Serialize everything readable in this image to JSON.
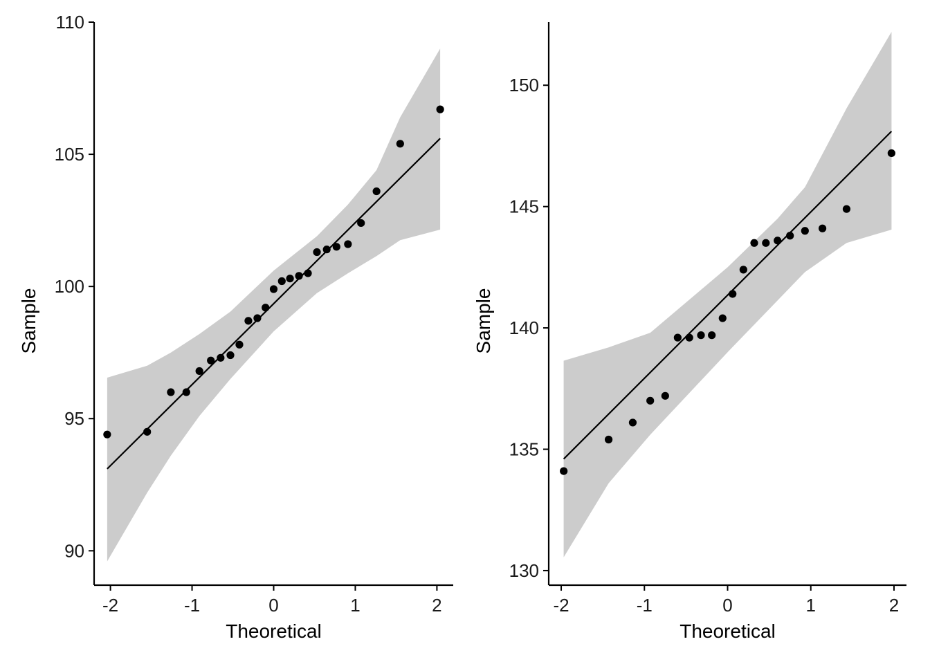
{
  "colors": {
    "band": "#cccccc",
    "line": "#000000",
    "point": "#000000",
    "axis": "#000000",
    "background": "#ffffff"
  },
  "chart_data": [
    {
      "type": "scatter",
      "title": "",
      "xlabel": "Theoretical",
      "ylabel": "Sample",
      "xlim": [
        -2.2,
        2.2
      ],
      "ylim": [
        88.7,
        110
      ],
      "x_ticks": [
        -2,
        -1,
        0,
        1,
        2
      ],
      "x_tick_labels": [
        "-2",
        "-1",
        "0",
        "1",
        "2"
      ],
      "y_ticks": [
        90,
        95,
        100,
        105,
        110
      ],
      "y_tick_labels": [
        "90",
        "95",
        "100",
        "105",
        "110"
      ],
      "grid": false,
      "points": [
        {
          "x": -2.04,
          "y": 94.4
        },
        {
          "x": -1.55,
          "y": 94.5
        },
        {
          "x": -1.26,
          "y": 96.0
        },
        {
          "x": -1.07,
          "y": 96.0
        },
        {
          "x": -0.91,
          "y": 96.8
        },
        {
          "x": -0.77,
          "y": 97.2
        },
        {
          "x": -0.65,
          "y": 97.3
        },
        {
          "x": -0.53,
          "y": 97.4
        },
        {
          "x": -0.42,
          "y": 97.8
        },
        {
          "x": -0.31,
          "y": 98.7
        },
        {
          "x": -0.2,
          "y": 98.8
        },
        {
          "x": -0.1,
          "y": 99.2
        },
        {
          "x": 0.0,
          "y": 99.9
        },
        {
          "x": 0.1,
          "y": 100.2
        },
        {
          "x": 0.2,
          "y": 100.3
        },
        {
          "x": 0.31,
          "y": 100.4
        },
        {
          "x": 0.42,
          "y": 100.5
        },
        {
          "x": 0.53,
          "y": 101.3
        },
        {
          "x": 0.65,
          "y": 101.4
        },
        {
          "x": 0.77,
          "y": 101.5
        },
        {
          "x": 0.91,
          "y": 101.6
        },
        {
          "x": 1.07,
          "y": 102.4
        },
        {
          "x": 1.26,
          "y": 103.6
        },
        {
          "x": 1.55,
          "y": 105.4
        },
        {
          "x": 2.04,
          "y": 106.7
        }
      ],
      "reference_line": [
        {
          "x": -2.04,
          "y": 93.1
        },
        {
          "x": 2.04,
          "y": 105.6
        }
      ],
      "confidence_band": {
        "upper": [
          {
            "x": -2.04,
            "y": 96.55
          },
          {
            "x": -1.55,
            "y": 97.0
          },
          {
            "x": -1.26,
            "y": 97.5
          },
          {
            "x": -0.91,
            "y": 98.2
          },
          {
            "x": -0.53,
            "y": 99.05
          },
          {
            "x": 0.0,
            "y": 100.6
          },
          {
            "x": 0.53,
            "y": 101.9
          },
          {
            "x": 0.91,
            "y": 103.1
          },
          {
            "x": 1.26,
            "y": 104.4
          },
          {
            "x": 1.55,
            "y": 106.4
          },
          {
            "x": 2.04,
            "y": 109.0
          }
        ],
        "lower": [
          {
            "x": 2.04,
            "y": 102.15
          },
          {
            "x": 1.55,
            "y": 101.75
          },
          {
            "x": 1.26,
            "y": 101.15
          },
          {
            "x": 0.91,
            "y": 100.5
          },
          {
            "x": 0.53,
            "y": 99.75
          },
          {
            "x": 0.0,
            "y": 98.3
          },
          {
            "x": -0.53,
            "y": 96.5
          },
          {
            "x": -0.91,
            "y": 95.1
          },
          {
            "x": -1.26,
            "y": 93.6
          },
          {
            "x": -1.55,
            "y": 92.2
          },
          {
            "x": -2.04,
            "y": 89.6
          }
        ]
      }
    },
    {
      "type": "scatter",
      "title": "",
      "xlabel": "Theoretical",
      "ylabel": "Sample",
      "xlim": [
        -2.15,
        2.15
      ],
      "ylim": [
        129.4,
        152.6
      ],
      "x_ticks": [
        -2,
        -1,
        0,
        1,
        2
      ],
      "x_tick_labels": [
        "-2",
        "-1",
        "0",
        "1",
        "2"
      ],
      "y_ticks": [
        130,
        135,
        140,
        145,
        150
      ],
      "y_tick_labels": [
        "130",
        "135",
        "140",
        "145",
        "150"
      ],
      "grid": false,
      "points": [
        {
          "x": -1.97,
          "y": 134.1
        },
        {
          "x": -1.43,
          "y": 135.4
        },
        {
          "x": -1.14,
          "y": 136.1
        },
        {
          "x": -0.93,
          "y": 137.0
        },
        {
          "x": -0.75,
          "y": 137.2
        },
        {
          "x": -0.6,
          "y": 139.6
        },
        {
          "x": -0.46,
          "y": 139.6
        },
        {
          "x": -0.32,
          "y": 139.7
        },
        {
          "x": -0.19,
          "y": 139.7
        },
        {
          "x": -0.06,
          "y": 140.4
        },
        {
          "x": 0.06,
          "y": 141.4
        },
        {
          "x": 0.19,
          "y": 142.4
        },
        {
          "x": 0.32,
          "y": 143.5
        },
        {
          "x": 0.46,
          "y": 143.5
        },
        {
          "x": 0.6,
          "y": 143.6
        },
        {
          "x": 0.75,
          "y": 143.8
        },
        {
          "x": 0.93,
          "y": 144.0
        },
        {
          "x": 1.14,
          "y": 144.1
        },
        {
          "x": 1.43,
          "y": 144.9
        },
        {
          "x": 1.97,
          "y": 147.2
        }
      ],
      "reference_line": [
        {
          "x": -1.97,
          "y": 134.6
        },
        {
          "x": 1.97,
          "y": 148.1
        }
      ],
      "confidence_band": {
        "upper": [
          {
            "x": -1.97,
            "y": 138.65
          },
          {
            "x": -1.43,
            "y": 139.2
          },
          {
            "x": -0.93,
            "y": 139.8
          },
          {
            "x": 0.0,
            "y": 142.5
          },
          {
            "x": 0.6,
            "y": 144.5
          },
          {
            "x": 0.93,
            "y": 145.8
          },
          {
            "x": 1.43,
            "y": 149.05
          },
          {
            "x": 1.97,
            "y": 152.2
          }
        ],
        "lower": [
          {
            "x": 1.97,
            "y": 144.05
          },
          {
            "x": 1.43,
            "y": 143.5
          },
          {
            "x": 0.93,
            "y": 142.3
          },
          {
            "x": 0.0,
            "y": 139.0
          },
          {
            "x": -0.93,
            "y": 135.6
          },
          {
            "x": -1.43,
            "y": 133.6
          },
          {
            "x": -1.97,
            "y": 130.55
          }
        ]
      }
    }
  ]
}
